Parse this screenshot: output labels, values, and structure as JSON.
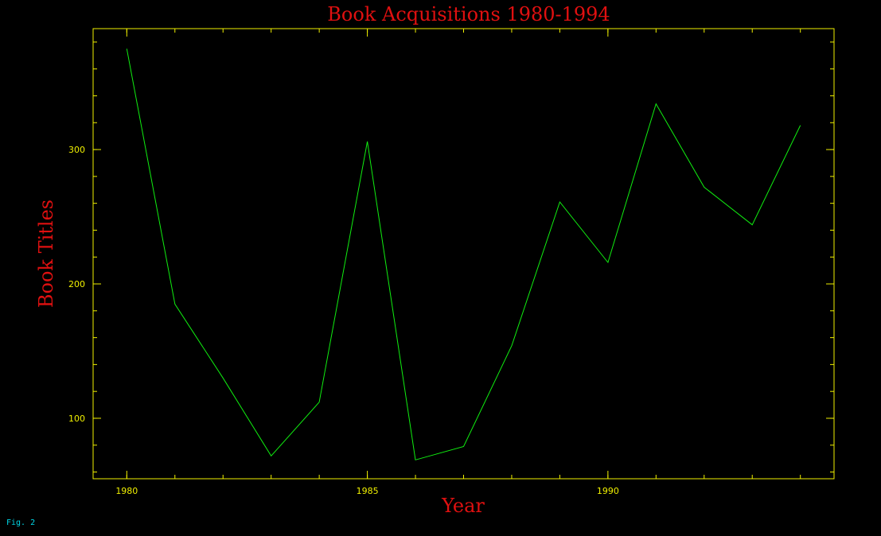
{
  "chart_data": {
    "type": "line",
    "title": "Book Acquisitions 1980-1994",
    "xlabel": "Year",
    "ylabel": "Book Titles",
    "x": [
      1980,
      1981,
      1982,
      1983,
      1984,
      1985,
      1986,
      1987,
      1988,
      1989,
      1990,
      1991,
      1992,
      1993,
      1994
    ],
    "series": [
      {
        "values": [
          375,
          185,
          130,
          72,
          112,
          306,
          69,
          79,
          154,
          261,
          216,
          334,
          272,
          244,
          318
        ]
      }
    ],
    "xlim": [
      1979.3,
      1994.7
    ],
    "ylim": [
      55,
      390
    ],
    "xticks": [
      1980,
      1985,
      1990
    ],
    "yticks": [
      100,
      200,
      300
    ],
    "grid": false,
    "legend": "none"
  },
  "figure_label": "Fig. 2",
  "colors": {
    "background": "#000000",
    "axes": "#f0f000",
    "tick_labels": "#f0f000",
    "title": "#e01010",
    "series_line": "#10ee10",
    "figure_label": "#00d8e8"
  }
}
